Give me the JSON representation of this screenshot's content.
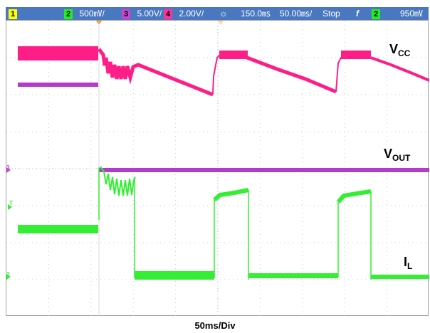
{
  "status_bar": {
    "ch1_num": "1",
    "ch2_num": "2",
    "ch2_scale": "500㎷/",
    "ch3_num": "3",
    "ch3_scale": "5.00V/",
    "ch4_num": "4",
    "ch4_scale": "2.00V/",
    "trigger_icon": "☼",
    "delay": "150.0㎳",
    "timebase_div": "50.00㎳/",
    "run_state": "Stop",
    "trigger_slope": "f",
    "trig_ch_num": "2",
    "trig_level": "950㎷"
  },
  "trace_labels": {
    "vcc_main": "V",
    "vcc_sub": "CC",
    "vout_main": "V",
    "vout_sub": "OUT",
    "il_main": "I",
    "il_sub": "L"
  },
  "markers": {
    "ch3": "3",
    "ch2": "2",
    "trigger": "T"
  },
  "footer": {
    "timebase": "50ms/Div"
  },
  "colors": {
    "ch1": "#ffff00",
    "ch2": "#22ee22",
    "ch3": "#cc44cc",
    "ch4": "#ff3399"
  }
}
